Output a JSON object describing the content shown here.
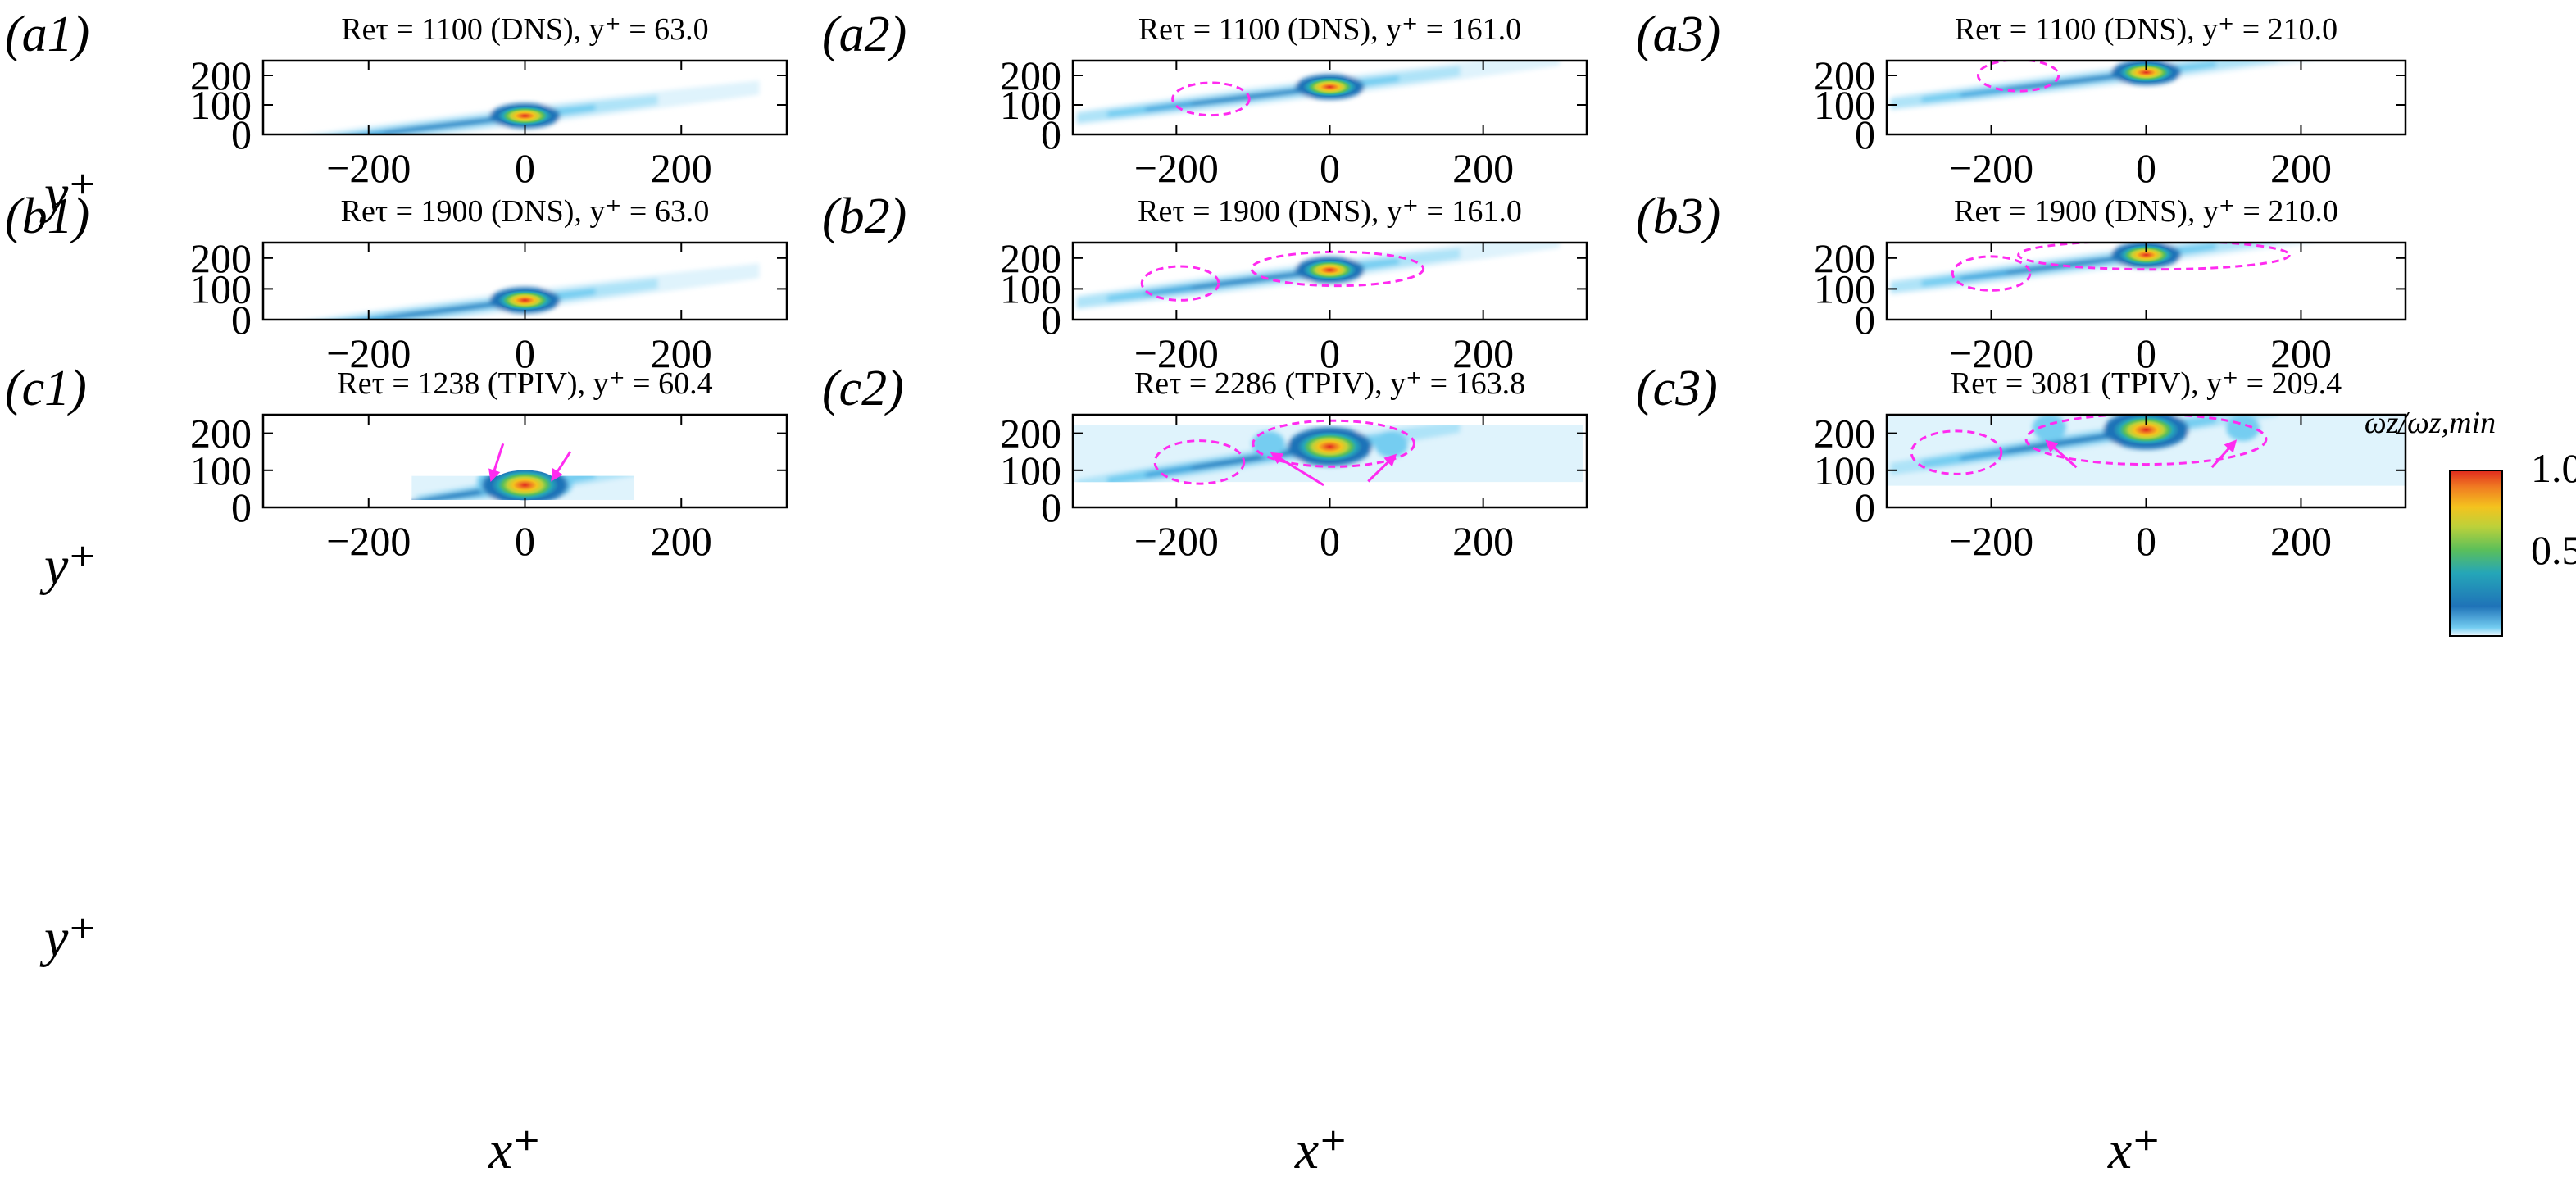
{
  "figure": {
    "cbar_title": "ωz/ωz,min",
    "cbar_ticks": [
      "1.0",
      "0.5"
    ],
    "xlabel": "x⁺",
    "ylabel": "y⁺"
  },
  "colors": {
    "scale": [
      "#ffffff",
      "#dff3fc",
      "#aee3f8",
      "#74cdf1",
      "#3ca3dc",
      "#1f73b8",
      "#25a6b8",
      "#5bbf5a",
      "#bcd13a",
      "#f4c31e",
      "#f07c22",
      "#e02a1e"
    ],
    "annotation": "#ff2bf0"
  },
  "chart_data": [
    {
      "id": "a1",
      "panel_label": "(a1)",
      "title": "Reτ = 1100 (DNS), y⁺ = 63.0",
      "type": "heatmap",
      "xlim": [
        -335,
        335
      ],
      "ylim": [
        0,
        250
      ],
      "xticks": [
        -200,
        0,
        200
      ],
      "yticks": [
        0,
        100,
        200
      ],
      "xtick_labels": [
        "−200",
        "0",
        "200"
      ],
      "ytick_labels": [
        "0",
        "100",
        "200"
      ],
      "y_center": 63,
      "peak_x": 0,
      "peak": 1.0,
      "ellipses": [],
      "arrows": []
    },
    {
      "id": "a2",
      "panel_label": "(a2)",
      "title": "Reτ = 1100 (DNS), y⁺ = 161.0",
      "type": "heatmap",
      "xlim": [
        -335,
        335
      ],
      "ylim": [
        0,
        250
      ],
      "xticks": [
        -200,
        0,
        200
      ],
      "yticks": [
        0,
        100,
        200
      ],
      "xtick_labels": [
        "−200",
        "0",
        "200"
      ],
      "ytick_labels": [
        "0",
        "100",
        "200"
      ],
      "y_center": 161,
      "peak_x": 0,
      "peak": 1.0,
      "ellipses": [
        {
          "cx": -155,
          "cy": 120,
          "rx": 50,
          "ry": 55
        }
      ],
      "arrows": []
    },
    {
      "id": "a3",
      "panel_label": "(a3)",
      "title": "Reτ = 1100 (DNS), y⁺ = 210.0",
      "type": "heatmap",
      "xlim": [
        -335,
        335
      ],
      "ylim": [
        0,
        250
      ],
      "xticks": [
        -200,
        0,
        200
      ],
      "yticks": [
        0,
        100,
        200
      ],
      "xtick_labels": [
        "−200",
        "0",
        "200"
      ],
      "ytick_labels": [
        "0",
        "100",
        "200"
      ],
      "y_center": 210,
      "peak_x": 0,
      "peak": 1.0,
      "ellipses": [
        {
          "cx": -165,
          "cy": 200,
          "rx": 52,
          "ry": 53
        }
      ],
      "arrows": []
    },
    {
      "id": "b1",
      "panel_label": "(b1)",
      "title": "Reτ = 1900 (DNS), y⁺ = 63.0",
      "type": "heatmap",
      "xlim": [
        -335,
        335
      ],
      "ylim": [
        0,
        250
      ],
      "xticks": [
        -200,
        0,
        200
      ],
      "yticks": [
        0,
        100,
        200
      ],
      "xtick_labels": [
        "−200",
        "0",
        "200"
      ],
      "ytick_labels": [
        "0",
        "100",
        "200"
      ],
      "y_center": 63,
      "peak_x": 0,
      "peak": 1.0,
      "ellipses": [],
      "arrows": []
    },
    {
      "id": "b2",
      "panel_label": "(b2)",
      "title": "Reτ = 1900 (DNS), y⁺ = 161.0",
      "type": "heatmap",
      "xlim": [
        -335,
        335
      ],
      "ylim": [
        0,
        250
      ],
      "xticks": [
        -200,
        0,
        200
      ],
      "yticks": [
        0,
        100,
        200
      ],
      "xtick_labels": [
        "−200",
        "0",
        "200"
      ],
      "ytick_labels": [
        "0",
        "100",
        "200"
      ],
      "y_center": 161,
      "peak_x": 0,
      "peak": 1.0,
      "ellipses": [
        {
          "cx": -195,
          "cy": 118,
          "rx": 50,
          "ry": 55
        },
        {
          "cx": 10,
          "cy": 165,
          "rx": 112,
          "ry": 55
        }
      ],
      "arrows": []
    },
    {
      "id": "b3",
      "panel_label": "(b3)",
      "title": "Reτ = 1900 (DNS), y⁺ = 210.0",
      "type": "heatmap",
      "xlim": [
        -335,
        335
      ],
      "ylim": [
        0,
        250
      ],
      "xticks": [
        -200,
        0,
        200
      ],
      "yticks": [
        0,
        100,
        200
      ],
      "xtick_labels": [
        "−200",
        "0",
        "200"
      ],
      "ytick_labels": [
        "0",
        "100",
        "200"
      ],
      "y_center": 210,
      "peak_x": 0,
      "peak": 1.0,
      "ellipses": [
        {
          "cx": -200,
          "cy": 150,
          "rx": 50,
          "ry": 55
        },
        {
          "cx": 10,
          "cy": 210,
          "rx": 175,
          "ry": 47
        }
      ],
      "arrows": []
    },
    {
      "id": "c1",
      "panel_label": "(c1)",
      "title": "Reτ = 1238 (TPIV), y⁺ = 60.4",
      "type": "heatmap",
      "xlim": [
        -335,
        335
      ],
      "ylim": [
        0,
        250
      ],
      "xticks": [
        -200,
        0,
        200
      ],
      "yticks": [
        0,
        100,
        200
      ],
      "xtick_labels": [
        "−200",
        "0",
        "200"
      ],
      "ytick_labels": [
        "0",
        "100",
        "200"
      ],
      "y_center": 60,
      "peak_x": 0,
      "peak": 1.0,
      "data_xlim": [
        -145,
        140
      ],
      "data_ylim": [
        20,
        85
      ],
      "ellipses": [],
      "arrows": [
        {
          "x1": -28,
          "y1": 172,
          "x2": -43,
          "y2": 75
        },
        {
          "x1": 58,
          "y1": 150,
          "x2": 35,
          "y2": 75
        }
      ]
    },
    {
      "id": "c2",
      "panel_label": "(c2)",
      "title": "Reτ = 2286 (TPIV), y⁺ = 163.8",
      "type": "heatmap",
      "xlim": [
        -335,
        335
      ],
      "ylim": [
        0,
        250
      ],
      "xticks": [
        -200,
        0,
        200
      ],
      "yticks": [
        0,
        100,
        200
      ],
      "xtick_labels": [
        "−200",
        "0",
        "200"
      ],
      "ytick_labels": [
        "0",
        "100",
        "200"
      ],
      "y_center": 164,
      "peak_x": 0,
      "peak": 1.0,
      "data_xlim": [
        -335,
        330
      ],
      "data_ylim": [
        68,
        222
      ],
      "ellipses": [
        {
          "cx": -170,
          "cy": 122,
          "rx": 58,
          "ry": 58
        },
        {
          "cx": 5,
          "cy": 172,
          "rx": 105,
          "ry": 62
        }
      ],
      "arrows": [
        {
          "x1": -8,
          "y1": 60,
          "x2": -75,
          "y2": 145
        },
        {
          "x1": 50,
          "y1": 70,
          "x2": 85,
          "y2": 140
        }
      ]
    },
    {
      "id": "c3",
      "panel_label": "(c3)",
      "title": "Reτ = 3081 (TPIV), y⁺ = 209.4",
      "type": "heatmap",
      "xlim": [
        -335,
        335
      ],
      "ylim": [
        0,
        250
      ],
      "xticks": [
        -200,
        0,
        200
      ],
      "yticks": [
        0,
        100,
        200
      ],
      "xtick_labels": [
        "−200",
        "0",
        "200"
      ],
      "ytick_labels": [
        "0",
        "100",
        "200"
      ],
      "y_center": 209,
      "peak_x": 0,
      "peak": 1.0,
      "data_xlim": [
        -335,
        335
      ],
      "data_ylim": [
        58,
        250
      ],
      "ellipses": [
        {
          "cx": -245,
          "cy": 148,
          "rx": 58,
          "ry": 58
        },
        {
          "cx": 0,
          "cy": 184,
          "rx": 155,
          "ry": 68
        }
      ],
      "arrows": [
        {
          "x1": -90,
          "y1": 108,
          "x2": -128,
          "y2": 178
        },
        {
          "x1": 85,
          "y1": 108,
          "x2": 115,
          "y2": 178
        }
      ]
    }
  ]
}
